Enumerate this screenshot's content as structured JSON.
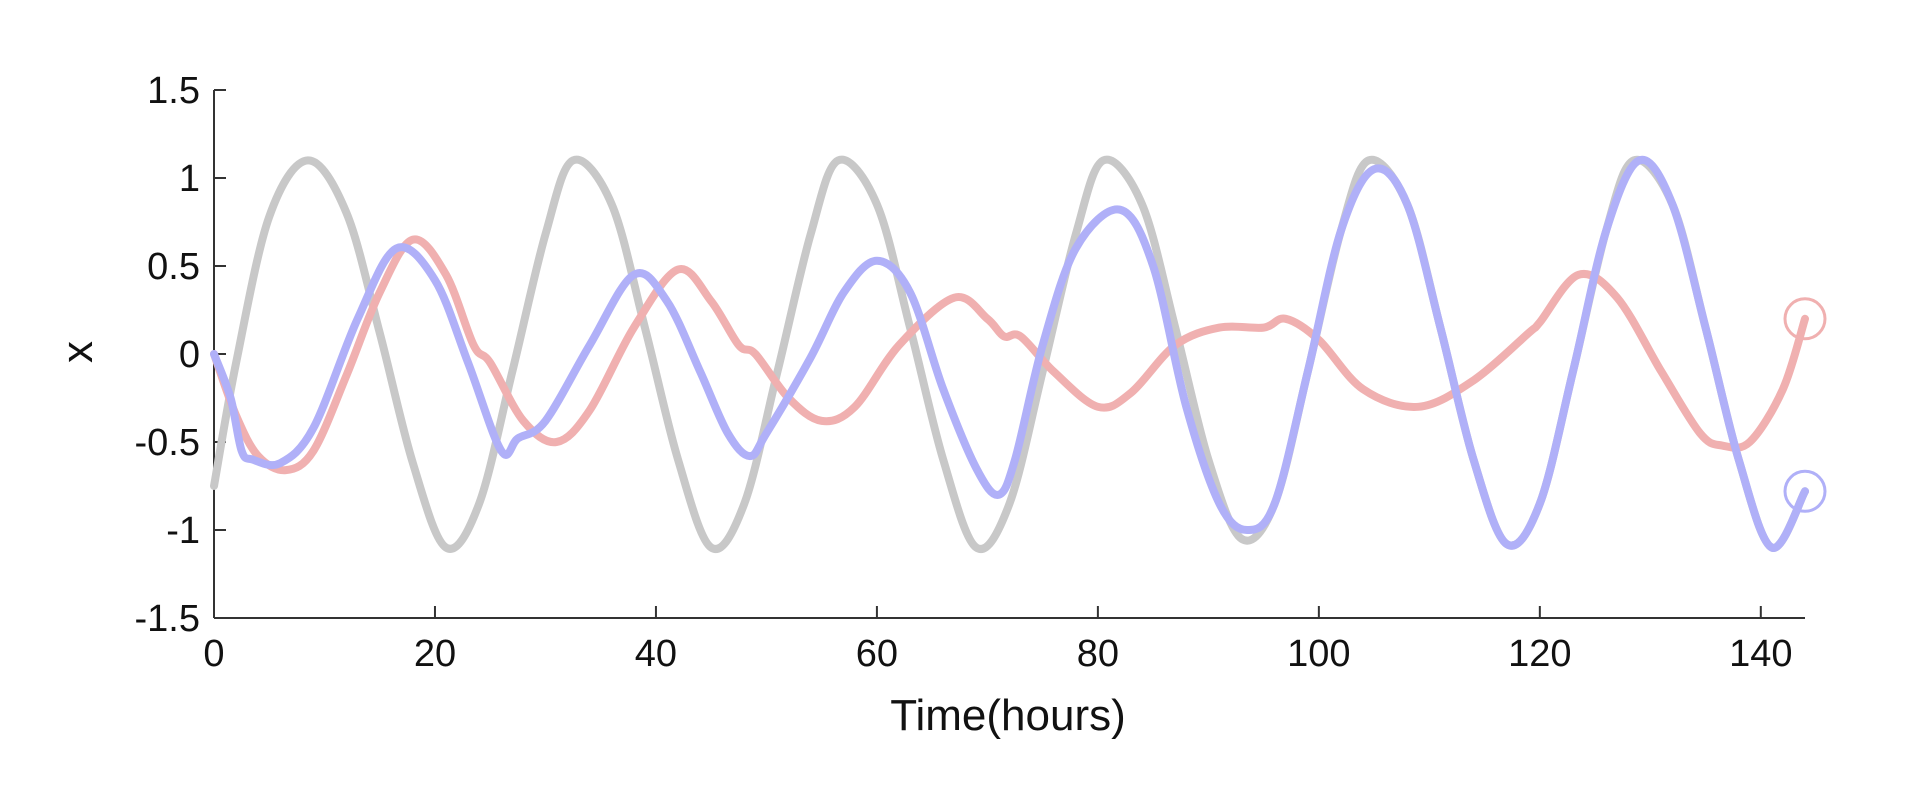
{
  "chart_data": {
    "type": "line",
    "title": "",
    "xlabel": "Time(hours)",
    "ylabel": "x",
    "xlim": [
      0,
      144
    ],
    "ylim": [
      -1.5,
      1.5
    ],
    "xticks": [
      0,
      20,
      40,
      60,
      80,
      100,
      120,
      140
    ],
    "xtick_labels": [
      "0",
      "20",
      "40",
      "60",
      "80",
      "100",
      "120",
      "140"
    ],
    "yticks": [
      1.5,
      1,
      0.5,
      0,
      -0.5,
      -1,
      -1.5
    ],
    "ytick_labels": [
      "1.5",
      "1",
      "0.5",
      "0",
      "-0.5",
      "-1",
      "-1.5"
    ],
    "grid": false,
    "legend": "none",
    "series": [
      {
        "color": "#c8c8c8",
        "x": [
          0,
          2,
          5,
          8.5,
          12,
          15,
          18,
          21,
          24,
          27,
          30,
          32.5,
          36,
          39,
          42,
          45,
          48,
          51,
          54,
          56.5,
          60,
          63,
          66,
          69,
          72,
          75,
          78,
          80.5,
          84,
          87,
          90,
          93,
          96,
          99,
          102,
          104.5,
          108,
          111,
          114,
          117,
          120,
          123,
          126,
          128.5,
          132,
          135,
          138,
          141,
          144
        ],
        "values": [
          -0.75,
          -0.05,
          0.78,
          1.1,
          0.8,
          0.12,
          -0.62,
          -1.1,
          -0.85,
          -0.1,
          0.68,
          1.1,
          0.85,
          0.15,
          -0.6,
          -1.1,
          -0.85,
          -0.1,
          0.68,
          1.1,
          0.85,
          0.15,
          -0.6,
          -1.1,
          -0.85,
          -0.1,
          0.68,
          1.1,
          0.85,
          0.15,
          -0.6,
          -1.05,
          -0.85,
          -0.1,
          0.7,
          1.1,
          0.85,
          0.15,
          -0.6,
          -1.08,
          -0.85,
          -0.1,
          0.7,
          1.1,
          0.85,
          0.15,
          -0.6,
          -1.1,
          -0.78
        ]
      },
      {
        "color": "#f0b0b0",
        "x": [
          0,
          2,
          4,
          6.5,
          9,
          12,
          15,
          18,
          21,
          23.5,
          25,
          28,
          31,
          34,
          38,
          42,
          45,
          47.5,
          49,
          52,
          55,
          58,
          62,
          67,
          70,
          71.5,
          73,
          76,
          80,
          83,
          87,
          91,
          95,
          97,
          100,
          104,
          109,
          114,
          119,
          120,
          123.5,
          127,
          131,
          134.5,
          136.5,
          139,
          142,
          144
        ],
        "values": [
          0,
          -0.35,
          -0.58,
          -0.66,
          -0.55,
          -0.12,
          0.35,
          0.65,
          0.45,
          0.05,
          -0.05,
          -0.38,
          -0.5,
          -0.32,
          0.15,
          0.48,
          0.3,
          0.05,
          0,
          -0.25,
          -0.38,
          -0.3,
          0.05,
          0.32,
          0.2,
          0.1,
          0.1,
          -0.1,
          -0.3,
          -0.22,
          0.05,
          0.15,
          0.15,
          0.2,
          0.08,
          -0.2,
          -0.3,
          -0.15,
          0.12,
          0.18,
          0.45,
          0.32,
          -0.1,
          -0.45,
          -0.52,
          -0.5,
          -0.2,
          0.2
        ]
      },
      {
        "color": "#b0b0f8",
        "x": [
          0,
          1.5,
          2.5,
          3.5,
          6,
          9,
          13,
          16.5,
          20,
          23,
          26,
          27.5,
          30,
          34,
          38,
          41,
          44,
          46.5,
          48.5,
          50,
          54,
          57,
          60,
          63,
          66,
          69,
          71,
          72.5,
          75,
          78,
          82,
          85,
          88,
          91,
          93.5,
          96,
          99,
          102,
          105,
          108,
          111,
          114,
          117,
          120,
          123,
          126,
          129,
          132,
          135,
          138,
          141,
          144
        ],
        "values": [
          0,
          -0.25,
          -0.55,
          -0.6,
          -0.62,
          -0.42,
          0.2,
          0.6,
          0.42,
          -0.05,
          -0.55,
          -0.48,
          -0.38,
          0.05,
          0.45,
          0.3,
          -0.1,
          -0.45,
          -0.58,
          -0.45,
          -0.02,
          0.35,
          0.53,
          0.35,
          -0.2,
          -0.65,
          -0.8,
          -0.6,
          0.05,
          0.6,
          0.82,
          0.5,
          -0.3,
          -0.85,
          -1.0,
          -0.85,
          -0.1,
          0.7,
          1.05,
          0.85,
          0.15,
          -0.6,
          -1.08,
          -0.85,
          -0.1,
          0.7,
          1.1,
          0.85,
          0.15,
          -0.6,
          -1.1,
          -0.78
        ]
      }
    ],
    "end_markers": [
      {
        "color": "#f0b0b0",
        "x": 144,
        "y": 0.2
      },
      {
        "color": "#b0b0f8",
        "x": 144,
        "y": -0.78
      }
    ]
  }
}
